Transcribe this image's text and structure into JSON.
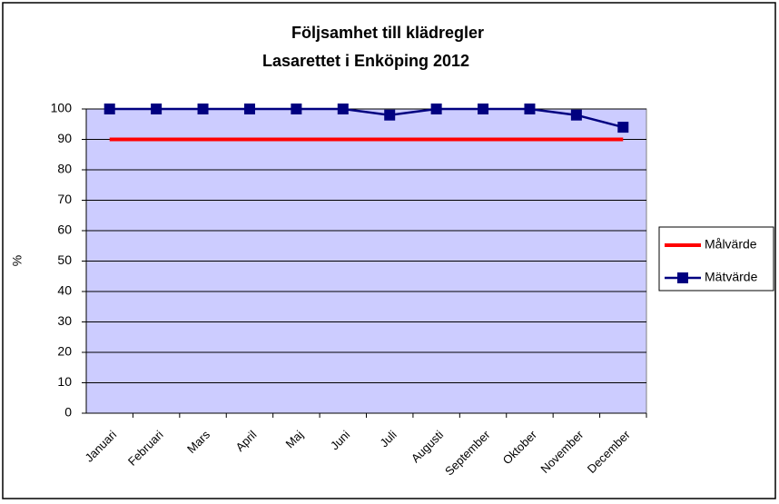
{
  "chart_data": {
    "type": "line",
    "title": "Följsamhet till klädregler",
    "subtitle": "Lasarettet i Enköping 2012",
    "y_label": "%",
    "categories": [
      "Januari",
      "Februari",
      "Mars",
      "April",
      "Maj",
      "Juni",
      "Juli",
      "Augusti",
      "September",
      "Oktober",
      "November",
      "December"
    ],
    "series": [
      {
        "name": "Målvärde",
        "color": "#ff0000",
        "marker": false,
        "values": [
          90,
          90,
          90,
          90,
          90,
          90,
          90,
          90,
          90,
          90,
          90,
          90
        ]
      },
      {
        "name": "Mätvärde",
        "color": "#000080",
        "marker": true,
        "values": [
          100,
          100,
          100,
          100,
          100,
          100,
          98,
          100,
          100,
          100,
          98,
          94
        ]
      }
    ],
    "ylim": [
      0,
      100
    ],
    "yticks": [
      0,
      10,
      20,
      30,
      40,
      50,
      60,
      70,
      80,
      90,
      100
    ],
    "grid": true,
    "legend": "right",
    "plot_background": "#ccccff"
  }
}
